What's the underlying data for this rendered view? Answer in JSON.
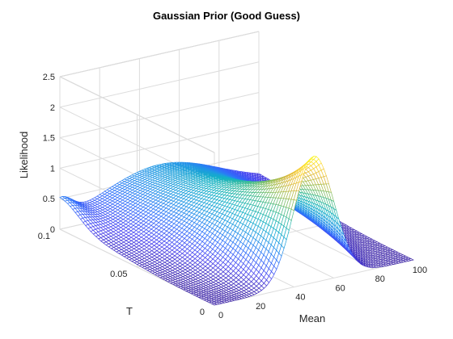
{
  "chart_data": {
    "type": "surface",
    "title": "Gaussian Prior (Good Guess)",
    "xlabel": "Mean",
    "ylabel": "T",
    "zlabel": "Likelihood",
    "xlim": [
      0,
      100
    ],
    "ylim": [
      0,
      0.1
    ],
    "zlim": [
      0,
      2.5
    ],
    "x_ticks": [
      "0",
      "20",
      "40",
      "60",
      "80",
      "100"
    ],
    "y_ticks": [
      "0",
      "0.05",
      "0.1"
    ],
    "z_ticks": [
      "0",
      "0.5",
      "1",
      "1.5",
      "2",
      "2.5"
    ],
    "grid": true,
    "colormap": [
      "#3e26a8",
      "#4743f0",
      "#2f6ffb",
      "#1e97e4",
      "#12b1c4",
      "#3fbc91",
      "#9abf57",
      "#e0b93b",
      "#fcd432",
      "#f9fb14"
    ],
    "edge_colored": true,
    "function": {
      "description_of_values": "likelihood z(mean, T): gaussian in mean, amplitude peaks at T = 0",
      "peak": {
        "mean": 50,
        "T": 0.0,
        "likelihood": 2.07
      },
      "mean_sigma_at_T0": 10,
      "secondary_ridge": {
        "mean": 0,
        "T": 0.1,
        "likelihood": 0.35
      }
    },
    "samples": [
      {
        "T": 0.0,
        "mean": [
          0,
          10,
          20,
          30,
          40,
          50,
          60,
          70,
          80,
          90,
          100
        ],
        "likelihood": [
          0.0,
          0.0,
          0.02,
          0.27,
          1.26,
          2.07,
          1.26,
          0.27,
          0.02,
          0.0,
          0.0
        ]
      },
      {
        "T": 0.025,
        "mean": [
          0,
          10,
          20,
          30,
          40,
          50,
          60,
          70,
          80,
          90,
          100
        ],
        "likelihood": [
          0.0,
          0.02,
          0.09,
          0.3,
          0.71,
          0.98,
          0.71,
          0.3,
          0.09,
          0.02,
          0.0
        ]
      },
      {
        "T": 0.05,
        "mean": [
          0,
          10,
          20,
          30,
          40,
          50,
          60,
          70,
          80,
          90,
          100
        ],
        "likelihood": [
          0.03,
          0.06,
          0.13,
          0.24,
          0.38,
          0.45,
          0.38,
          0.24,
          0.13,
          0.06,
          0.02
        ]
      },
      {
        "T": 0.1,
        "mean": [
          0,
          10,
          20,
          30,
          40,
          50,
          60,
          70,
          80,
          90,
          100
        ],
        "likelihood": [
          0.35,
          0.14,
          0.07,
          0.05,
          0.04,
          0.03,
          0.03,
          0.02,
          0.02,
          0.01,
          0.01
        ]
      }
    ]
  }
}
